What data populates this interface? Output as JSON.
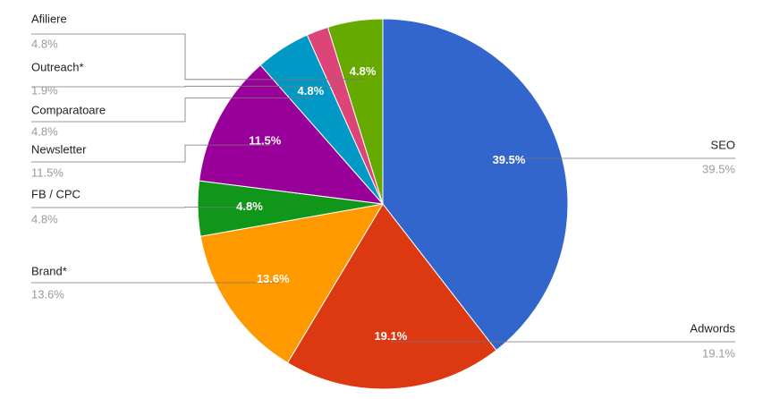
{
  "chart_data": {
    "type": "pie",
    "categories": [
      "SEO",
      "Adwords",
      "Brand*",
      "FB / CPC",
      "Newsletter",
      "Comparatoare",
      "Outreach*",
      "Afiliere"
    ],
    "values": [
      39.5,
      19.1,
      13.6,
      4.8,
      11.5,
      4.8,
      1.9,
      4.8
    ],
    "value_labels": [
      "39.5%",
      "19.1%",
      "13.6%",
      "4.8%",
      "11.5%",
      "4.8%",
      "1.9%",
      "4.8%"
    ],
    "colors": [
      "#3366cc",
      "#dc3912",
      "#ff9900",
      "#109618",
      "#990099",
      "#0099c6",
      "#dd4477",
      "#66aa00"
    ]
  }
}
